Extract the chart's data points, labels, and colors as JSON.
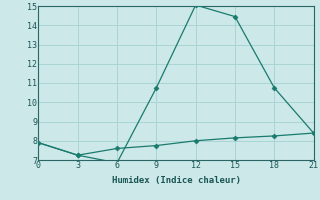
{
  "xlabel": "Humidex (Indice chaleur)",
  "ylabel": "",
  "background_color": "#cce8e8",
  "grid_color": "#aad4d4",
  "line_color": "#1a7a6e",
  "marker_color": "#1a7a6e",
  "xlim": [
    0,
    21
  ],
  "ylim": [
    7,
    15
  ],
  "xticks": [
    0,
    3,
    6,
    9,
    12,
    15,
    18,
    21
  ],
  "yticks": [
    7,
    8,
    9,
    10,
    11,
    12,
    13,
    14,
    15
  ],
  "series1_x": [
    0,
    3,
    6,
    9,
    12,
    15,
    18,
    21
  ],
  "series1_y": [
    7.9,
    7.25,
    6.85,
    10.75,
    15.05,
    14.45,
    10.75,
    8.4
  ],
  "series2_x": [
    0,
    3,
    6,
    9,
    12,
    15,
    18,
    21
  ],
  "series2_y": [
    7.9,
    7.25,
    7.6,
    7.75,
    8.0,
    8.15,
    8.25,
    8.4
  ]
}
